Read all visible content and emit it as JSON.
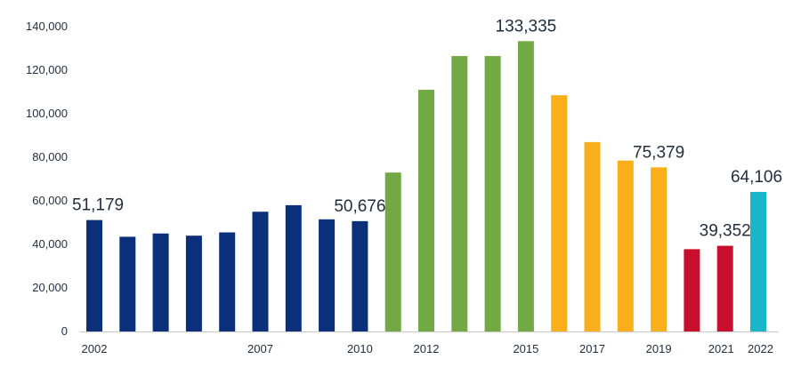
{
  "chart_data": {
    "type": "bar",
    "title": "",
    "xlabel": "",
    "ylabel": "",
    "ylim": [
      0,
      140000
    ],
    "yticks": [
      0,
      20000,
      40000,
      60000,
      80000,
      100000,
      120000,
      140000
    ],
    "ytick_labels": [
      "0",
      "20,000",
      "40,000",
      "60,000",
      "80,000",
      "100,000",
      "120,000",
      "140,000"
    ],
    "grid": false,
    "legend": "none",
    "categories": [
      "2002",
      "2003",
      "2004",
      "2005",
      "2006",
      "2007",
      "2008",
      "2009",
      "2010",
      "2011",
      "2012",
      "2013",
      "2014",
      "2015",
      "2016",
      "2017",
      "2018",
      "2019",
      "2020",
      "2021",
      "2022"
    ],
    "values": [
      51179,
      43500,
      45000,
      44000,
      45500,
      55000,
      58000,
      51500,
      50676,
      73000,
      111000,
      126500,
      126500,
      133335,
      108500,
      87000,
      78500,
      75379,
      37800,
      39352,
      64106
    ],
    "colors": [
      "#0b2f7a",
      "#0b2f7a",
      "#0b2f7a",
      "#0b2f7a",
      "#0b2f7a",
      "#0b2f7a",
      "#0b2f7a",
      "#0b2f7a",
      "#0b2f7a",
      "#72a944",
      "#72a944",
      "#72a944",
      "#72a944",
      "#72a944",
      "#f9ae1b",
      "#f9ae1b",
      "#f9ae1b",
      "#f9ae1b",
      "#c8102e",
      "#c8102e",
      "#1ab7c8"
    ],
    "xtick_labels": [
      {
        "index": 0,
        "label": "2002"
      },
      {
        "index": 5,
        "label": "2007"
      },
      {
        "index": 8,
        "label": "2010"
      },
      {
        "index": 10,
        "label": "2012"
      },
      {
        "index": 13,
        "label": "2015"
      },
      {
        "index": 15,
        "label": "2017"
      },
      {
        "index": 17,
        "label": "2019"
      },
      {
        "index": 19,
        "label": "2021"
      },
      {
        "index": 20,
        "label": "2022"
      }
    ],
    "data_labels": [
      {
        "index": 0,
        "label": "51,179"
      },
      {
        "index": 8,
        "label": "50,676"
      },
      {
        "index": 13,
        "label": "133,335"
      },
      {
        "index": 17,
        "label": "75,379"
      },
      {
        "index": 19,
        "label": "39,352"
      },
      {
        "index": 20,
        "label": "64,106"
      }
    ],
    "axis_color": "#c8c8c8",
    "text_color": "#1f2d3d"
  }
}
